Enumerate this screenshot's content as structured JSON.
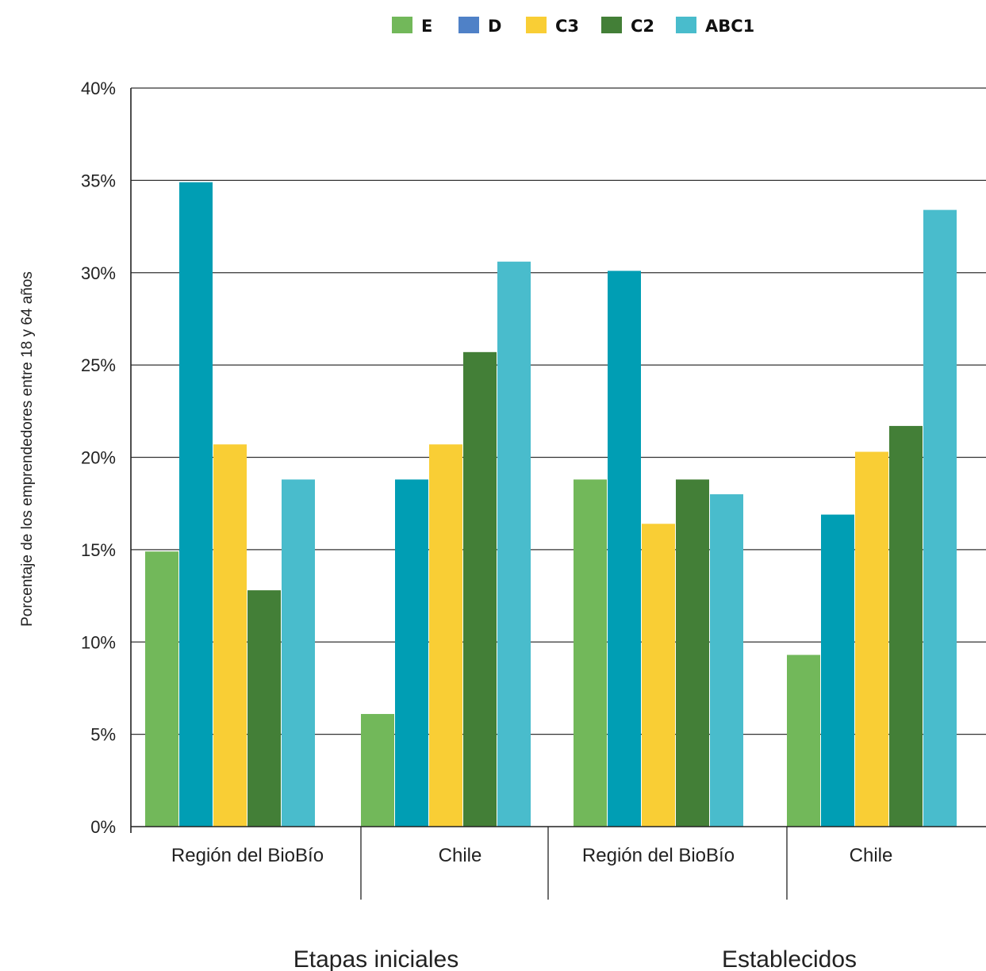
{
  "chart_data": {
    "type": "bar",
    "ylabel": "Porcentaje de los emprendedores entre 18 y 64 años",
    "ylim": [
      0,
      40
    ],
    "yticks": [
      {
        "value": 0,
        "label": "0%"
      },
      {
        "value": 5,
        "label": "5%"
      },
      {
        "value": 10,
        "label": "10%"
      },
      {
        "value": 15,
        "label": "15%"
      },
      {
        "value": 20,
        "label": "20%"
      },
      {
        "value": 25,
        "label": "25%"
      },
      {
        "value": 30,
        "label": "30%"
      },
      {
        "value": 35,
        "label": "35%"
      },
      {
        "value": 40,
        "label": "40%"
      }
    ],
    "grid": true,
    "legend_position": "top-center",
    "categories": [
      "Región del BioBío",
      "Chile",
      "Región del BioBío",
      "Chile"
    ],
    "groups": [
      {
        "label": "Etapas iniciales",
        "categories": [
          0,
          1
        ]
      },
      {
        "label": "Establecidos",
        "categories": [
          2,
          3
        ]
      }
    ],
    "legend": [
      {
        "name": "E",
        "color": "#72b85a"
      },
      {
        "name": "D",
        "color": "#4f81c7"
      },
      {
        "name": "C3",
        "color": "#f9ce35"
      },
      {
        "name": "C2",
        "color": "#437f37"
      },
      {
        "name": "ABC1",
        "color": "#49bccc"
      }
    ],
    "series": [
      {
        "key": "E",
        "color": "#72b85a",
        "values": [
          14.9,
          6.1,
          18.8,
          9.3
        ]
      },
      {
        "key": "D",
        "color": "#009eb4",
        "values": [
          34.9,
          18.8,
          30.1,
          16.9
        ]
      },
      {
        "key": "C3",
        "color": "#f9ce35",
        "values": [
          20.7,
          20.7,
          16.4,
          20.3
        ]
      },
      {
        "key": "C2",
        "color": "#437f37",
        "values": [
          12.8,
          25.7,
          18.8,
          21.7
        ]
      },
      {
        "key": "ABC1",
        "color": "#49bccc",
        "values": [
          18.8,
          30.6,
          18.0,
          33.4
        ]
      }
    ]
  }
}
